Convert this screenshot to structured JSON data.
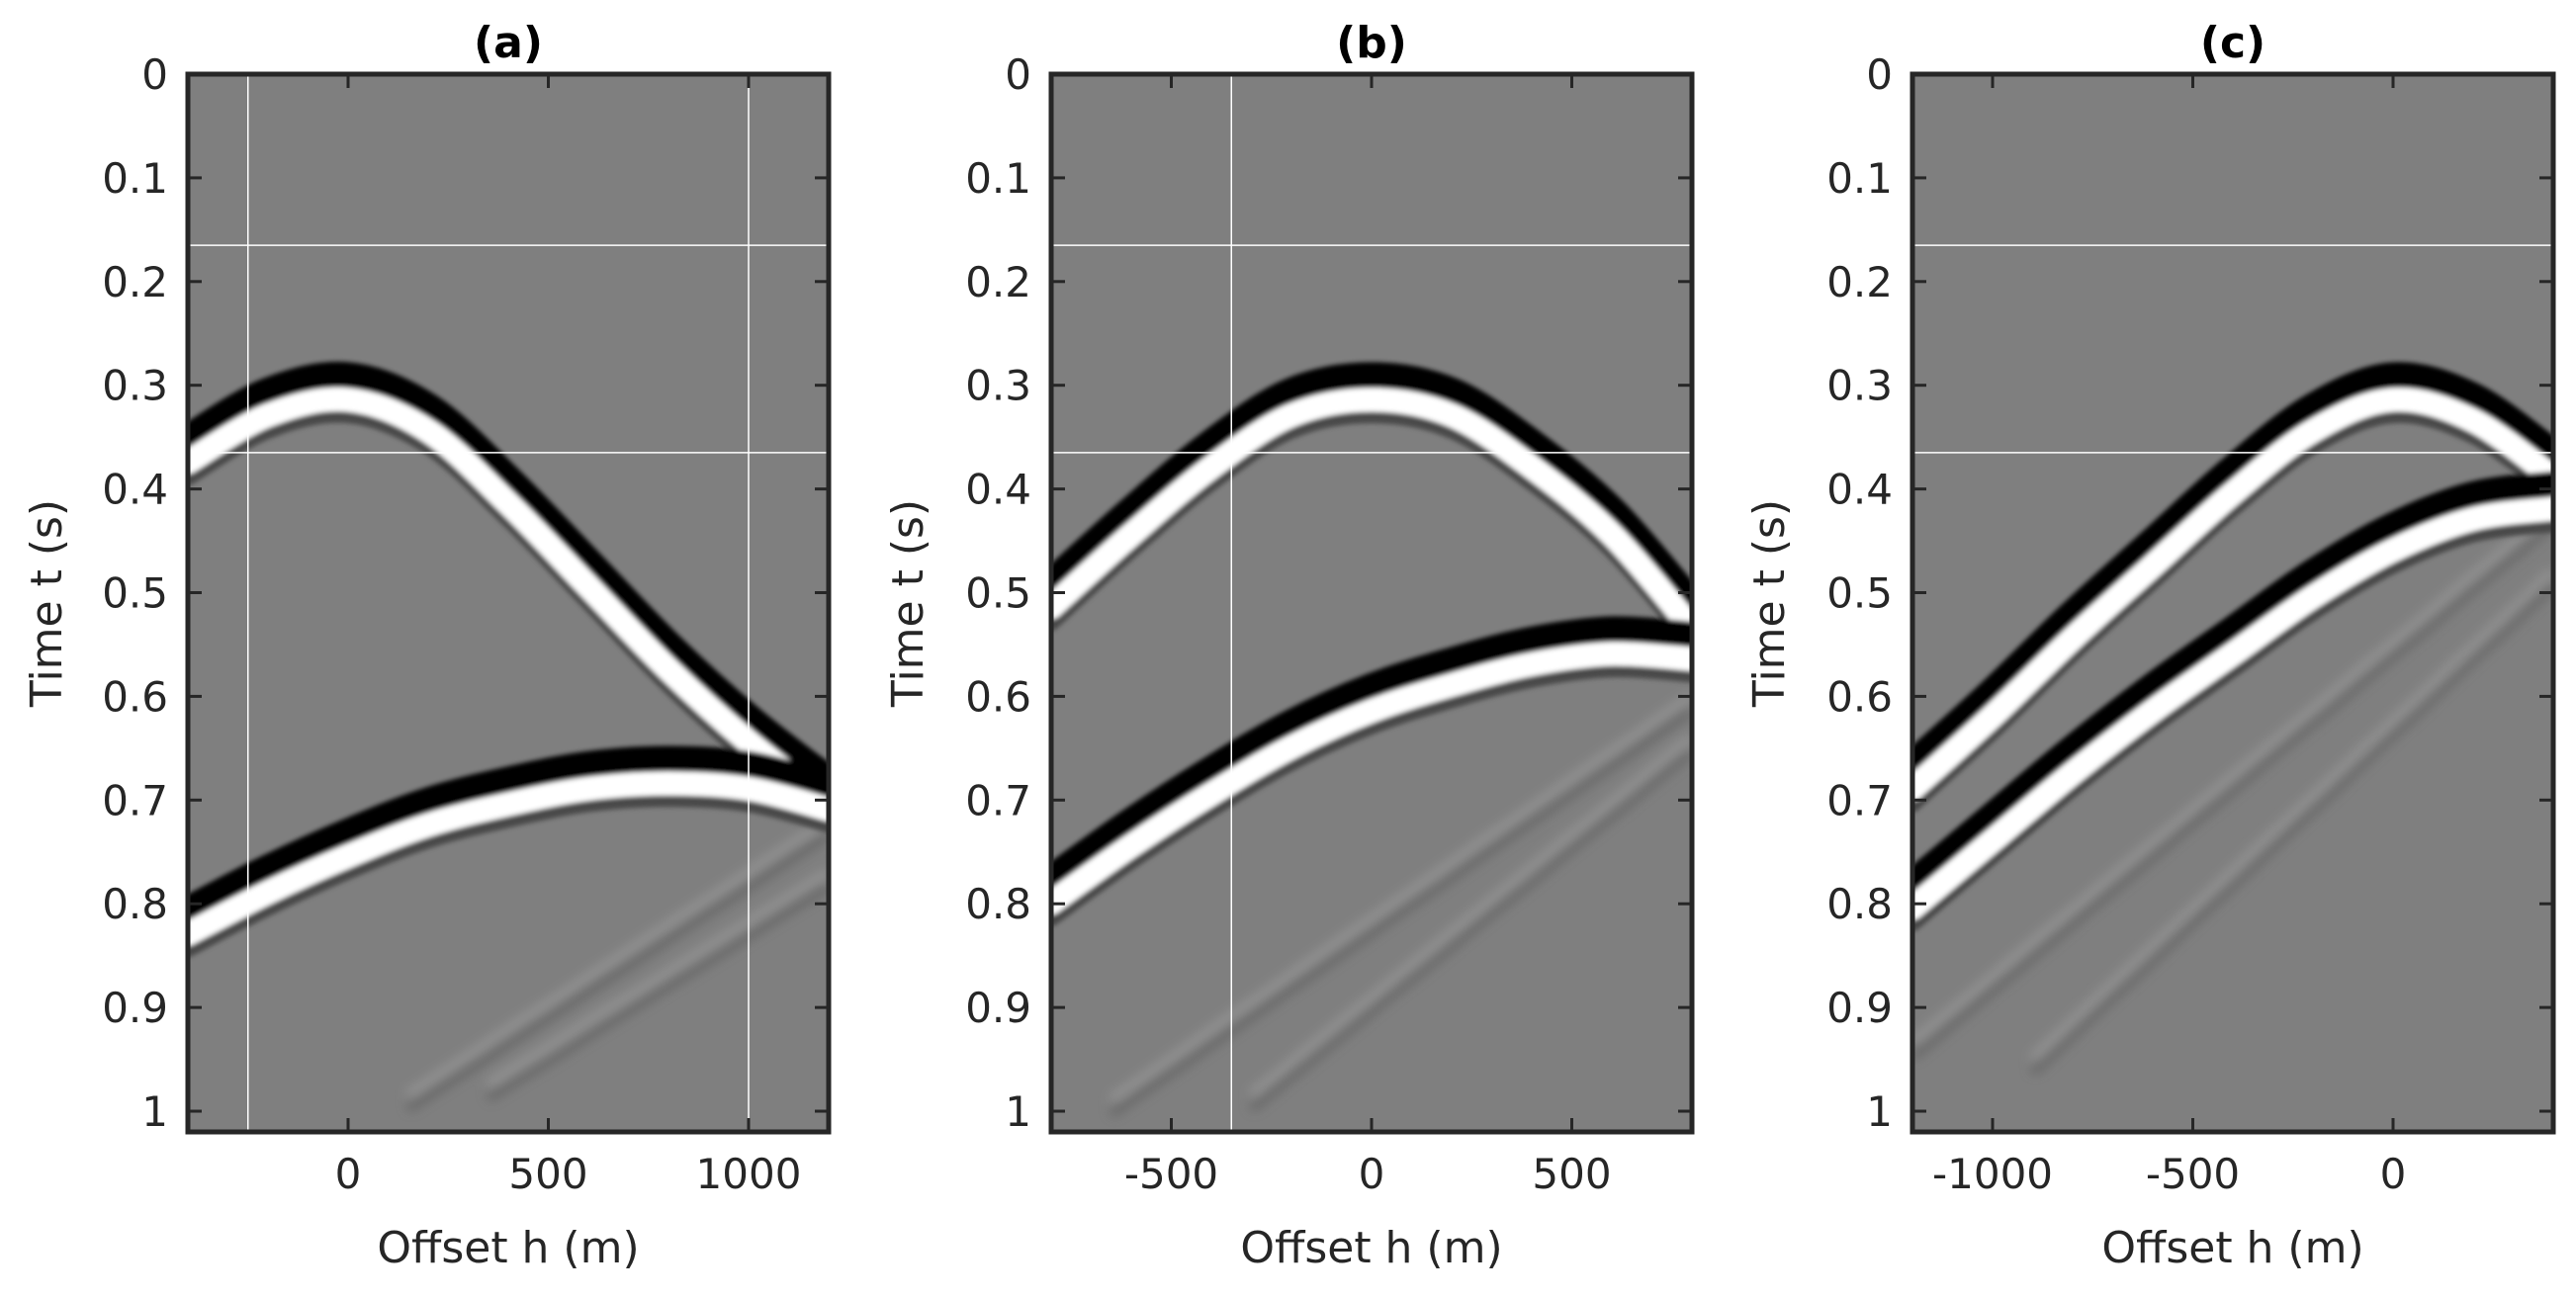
{
  "chart_data": [
    {
      "type": "heatmap",
      "panel": "a",
      "title": "(a)",
      "xlabel": "Offset h (m)",
      "ylabel": "Time t (s)",
      "xlim": [
        -400,
        1200
      ],
      "ylim": [
        0,
        1.02
      ],
      "y_reversed": true,
      "x_ticks": [
        0,
        500,
        1000
      ],
      "x_tick_labels": [
        "0",
        "500",
        "1000"
      ],
      "y_ticks": [
        0,
        0.1,
        0.2,
        0.3,
        0.4,
        0.5,
        0.6,
        0.7,
        0.8,
        0.9,
        1
      ],
      "y_tick_labels": [
        "0",
        "0.1",
        "0.2",
        "0.3",
        "0.4",
        "0.5",
        "0.6",
        "0.7",
        "0.8",
        "0.9",
        "1"
      ],
      "colormap": "gray",
      "events": [
        {
          "name": "event-1",
          "x": [
            -400,
            -200,
            0,
            200,
            400,
            600,
            800,
            1000,
            1200
          ],
          "t": [
            0.36,
            0.315,
            0.3,
            0.33,
            0.4,
            0.48,
            0.56,
            0.63,
            0.69
          ]
        },
        {
          "name": "event-2",
          "x": [
            -400,
            -200,
            0,
            200,
            400,
            600,
            800,
            1000,
            1200
          ],
          "t": [
            0.815,
            0.775,
            0.74,
            0.71,
            0.69,
            0.675,
            0.67,
            0.675,
            0.695
          ]
        }
      ],
      "faint_events": [
        {
          "x": [
            150,
            1200
          ],
          "t": [
            0.985,
            0.72
          ]
        },
        {
          "x": [
            350,
            1200
          ],
          "t": [
            0.975,
            0.77
          ]
        }
      ]
    },
    {
      "type": "heatmap",
      "panel": "b",
      "title": "(b)",
      "xlabel": "Offset h (m)",
      "ylabel": "Time t (s)",
      "xlim": [
        -800,
        800
      ],
      "ylim": [
        0,
        1.02
      ],
      "y_reversed": true,
      "x_ticks": [
        -500,
        0,
        500
      ],
      "x_tick_labels": [
        "-500",
        "0",
        "500"
      ],
      "y_ticks": [
        0,
        0.1,
        0.2,
        0.3,
        0.4,
        0.5,
        0.6,
        0.7,
        0.8,
        0.9,
        1
      ],
      "y_tick_labels": [
        "0",
        "0.1",
        "0.2",
        "0.3",
        "0.4",
        "0.5",
        "0.6",
        "0.7",
        "0.8",
        "0.9",
        "1"
      ],
      "colormap": "gray",
      "events": [
        {
          "name": "event-1",
          "x": [
            -800,
            -600,
            -400,
            -200,
            0,
            200,
            400,
            600,
            800
          ],
          "t": [
            0.5,
            0.43,
            0.365,
            0.315,
            0.3,
            0.315,
            0.365,
            0.43,
            0.52
          ]
        },
        {
          "name": "event-2",
          "x": [
            -800,
            -600,
            -400,
            -200,
            0,
            200,
            400,
            600,
            800
          ],
          "t": [
            0.785,
            0.73,
            0.68,
            0.635,
            0.6,
            0.575,
            0.555,
            0.545,
            0.55
          ]
        }
      ],
      "faint_events": [
        {
          "x": [
            -650,
            800
          ],
          "t": [
            0.99,
            0.6
          ]
        },
        {
          "x": [
            -300,
            800
          ],
          "t": [
            0.985,
            0.64
          ]
        }
      ]
    },
    {
      "type": "heatmap",
      "panel": "c",
      "title": "(c)",
      "xlabel": "Offset h (m)",
      "ylabel": "Time t (s)",
      "xlim": [
        -1200,
        400
      ],
      "ylim": [
        0,
        1.02
      ],
      "y_reversed": true,
      "x_ticks": [
        -1000,
        -500,
        0
      ],
      "x_tick_labels": [
        "-1000",
        "-500",
        "0"
      ],
      "y_ticks": [
        0,
        0.1,
        0.2,
        0.3,
        0.4,
        0.5,
        0.6,
        0.7,
        0.8,
        0.9,
        1
      ],
      "y_tick_labels": [
        "0",
        "0.1",
        "0.2",
        "0.3",
        "0.4",
        "0.5",
        "0.6",
        "0.7",
        "0.8",
        "0.9",
        "1"
      ],
      "colormap": "gray",
      "events": [
        {
          "name": "event-1",
          "x": [
            -1200,
            -1000,
            -800,
            -600,
            -400,
            -200,
            0,
            200,
            400
          ],
          "t": [
            0.675,
            0.605,
            0.53,
            0.46,
            0.39,
            0.33,
            0.3,
            0.32,
            0.375
          ]
        },
        {
          "name": "event-2",
          "x": [
            -1200,
            -1000,
            -800,
            -600,
            -400,
            -200,
            0,
            200,
            400
          ],
          "t": [
            0.79,
            0.725,
            0.66,
            0.6,
            0.545,
            0.49,
            0.445,
            0.415,
            0.405
          ]
        }
      ],
      "faint_events": [
        {
          "x": [
            -1200,
            400
          ],
          "t": [
            0.935,
            0.42
          ]
        },
        {
          "x": [
            -900,
            400
          ],
          "t": [
            0.95,
            0.48
          ]
        }
      ]
    }
  ]
}
